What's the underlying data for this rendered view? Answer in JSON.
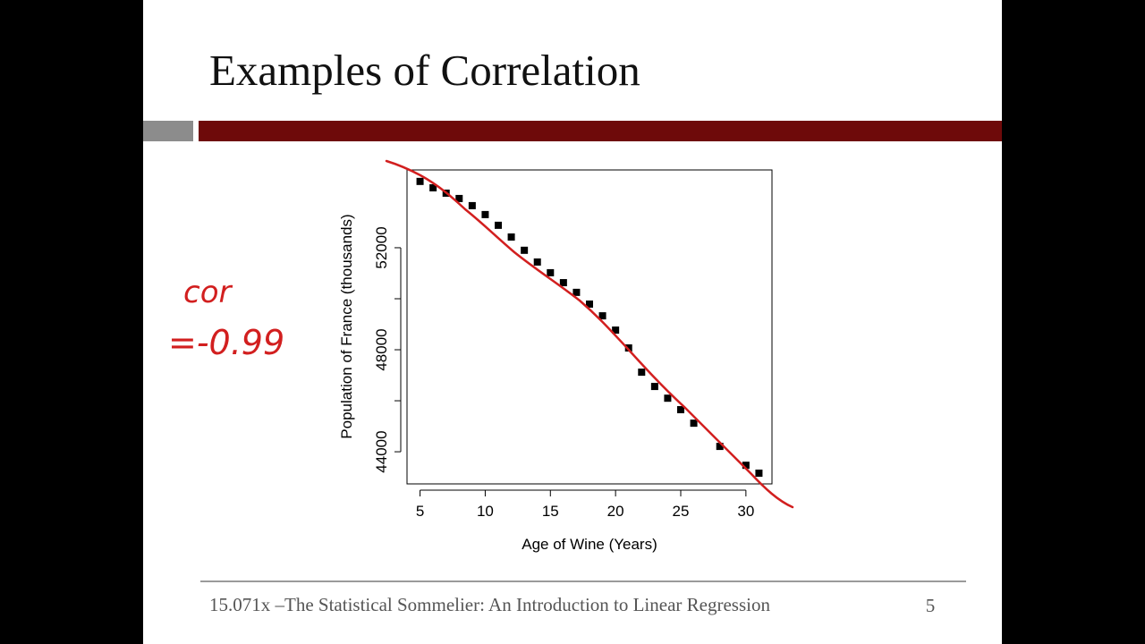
{
  "slide_title": "Examples of Correlation",
  "annotation": {
    "line1": "cor",
    "line2": "=-0.99"
  },
  "footer": {
    "text": "15.071x –The Statistical Sommelier: An Introduction to Linear Regression",
    "page": "5"
  },
  "chart_data": {
    "type": "scatter",
    "x_label": "Age of Wine (Years)",
    "y_label": "Population of France (thousands)",
    "x": [
      5,
      6,
      7,
      8,
      9,
      10,
      11,
      12,
      13,
      14,
      15,
      16,
      17,
      18,
      19,
      20,
      21,
      22,
      23,
      24,
      25,
      26,
      28,
      30,
      31
    ],
    "values": [
      54600,
      54350,
      54140,
      53930,
      53650,
      53300,
      52880,
      52420,
      51900,
      51440,
      51020,
      50630,
      50250,
      49790,
      49330,
      48770,
      48070,
      47120,
      46560,
      46100,
      45650,
      45120,
      44210,
      43470,
      43160
    ],
    "color": "#000000",
    "xlim": [
      4,
      32
    ],
    "ylim": [
      42740,
      55050
    ],
    "xticks": [
      5,
      10,
      15,
      20,
      25,
      30
    ],
    "yticks": [
      44000,
      48000,
      52000
    ],
    "yminorticks": [
      46000,
      50000
    ]
  }
}
